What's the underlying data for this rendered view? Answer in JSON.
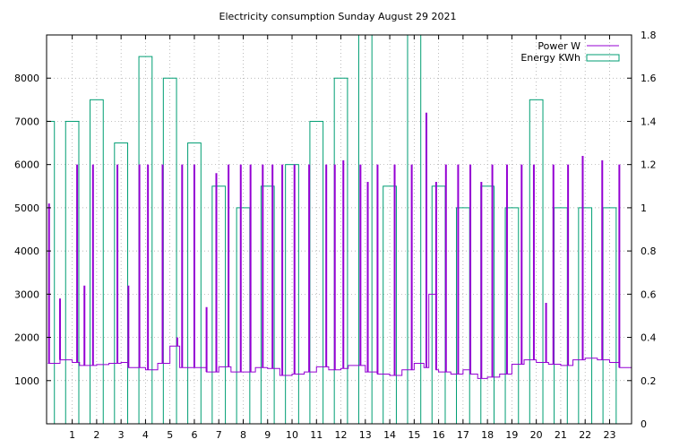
{
  "chart_data": {
    "type": "bar",
    "title": "Electricity consumption Sunday August 29 2021",
    "xlabel": "",
    "ylabel": "",
    "y2label": "",
    "x_ticks": [
      "1",
      "2",
      "3",
      "4",
      "5",
      "6",
      "7",
      "8",
      "9",
      "10",
      "11",
      "12",
      "13",
      "14",
      "15",
      "16",
      "17",
      "18",
      "19",
      "20",
      "21",
      "22",
      "23"
    ],
    "xlim": [
      -0.05,
      23.9
    ],
    "y_ticks": [
      "1000",
      "2000",
      "3000",
      "4000",
      "5000",
      "6000",
      "7000",
      "8000"
    ],
    "ylim": [
      0,
      9000
    ],
    "y2_ticks": [
      "0",
      "0.2",
      "0.4",
      "0.6",
      "0.8",
      "1",
      "1.2",
      "1.4",
      "1.6",
      "1.8"
    ],
    "y2lim": [
      0,
      1.8
    ],
    "grid": true,
    "legend_position": "top-right",
    "colors": {
      "power": "#9400d3",
      "energy": "#009e73"
    },
    "series": [
      {
        "name": "Energy KWh",
        "axis": "y2",
        "style": "boxes",
        "x": [
          0,
          1,
          2,
          3,
          4,
          5,
          6,
          7,
          8,
          9,
          10,
          11,
          12,
          13,
          14,
          15,
          16,
          17,
          18,
          19,
          20,
          21,
          22,
          23
        ],
        "values": [
          1.4,
          1.4,
          1.5,
          1.3,
          1.7,
          1.6,
          1.3,
          1.1,
          1.0,
          1.1,
          1.2,
          1.4,
          1.6,
          1.8,
          1.1,
          1.8,
          1.1,
          1.0,
          1.1,
          1.0,
          1.5,
          1.0,
          1.0,
          1.0
        ]
      },
      {
        "name": "Power W",
        "axis": "y",
        "style": "lines",
        "baseline": {
          "x": [
            0,
            0.5,
            1,
            1.3,
            2,
            2.5,
            3,
            3.3,
            4,
            4.5,
            5,
            5.4,
            6,
            6.5,
            7,
            7.5,
            8,
            8.5,
            9,
            9.5,
            10,
            10.5,
            11,
            11.5,
            12,
            12.3,
            13,
            13.5,
            14,
            14.5,
            15,
            15.4,
            15.6,
            15.9,
            16,
            16.5,
            17,
            17.3,
            17.6,
            18,
            18.5,
            19,
            19.5,
            20,
            20.5,
            21,
            21.5,
            22,
            22.5,
            23,
            23.4,
            23.9
          ],
          "values": [
            1400,
            1480,
            1420,
            1350,
            1370,
            1400,
            1420,
            1300,
            1250,
            1400,
            1800,
            1300,
            1300,
            1200,
            1320,
            1200,
            1200,
            1300,
            1280,
            1120,
            1150,
            1200,
            1320,
            1250,
            1280,
            1350,
            1200,
            1150,
            1120,
            1250,
            1400,
            1300,
            3000,
            1250,
            1200,
            1150,
            1250,
            1150,
            1050,
            1080,
            1150,
            1380,
            1480,
            1420,
            1380,
            1350,
            1480,
            1520,
            1480,
            1420,
            1300,
            1400
          ]
        },
        "spikes": {
          "x": [
            0.05,
            0.5,
            1.2,
            1.5,
            1.85,
            2.85,
            3.3,
            3.75,
            4.1,
            4.7,
            5.3,
            5.5,
            6.0,
            6.5,
            6.9,
            7.4,
            7.9,
            8.3,
            8.8,
            9.2,
            9.6,
            10.1,
            10.7,
            11.4,
            11.75,
            12.1,
            12.8,
            13.1,
            13.5,
            14.2,
            14.9,
            15.5,
            15.9,
            16.3,
            16.8,
            17.3,
            17.75,
            18.2,
            18.8,
            19.4,
            19.9,
            20.4,
            20.7,
            21.3,
            21.9,
            22.7,
            23.4
          ],
          "values": [
            5100,
            2900,
            6000,
            3200,
            6000,
            6000,
            3200,
            6000,
            6000,
            6000,
            2000,
            6000,
            6000,
            2700,
            5800,
            6000,
            6000,
            6000,
            6000,
            6000,
            6000,
            6000,
            6000,
            6000,
            6000,
            6100,
            6000,
            5600,
            6000,
            6000,
            6000,
            7200,
            5600,
            6000,
            6000,
            6000,
            5600,
            6000,
            6000,
            6000,
            6000,
            2800,
            6000,
            6000,
            6200,
            6100,
            6000
          ]
        }
      }
    ]
  }
}
